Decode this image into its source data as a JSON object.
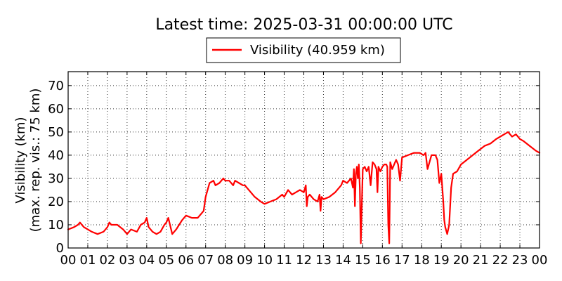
{
  "title": "Latest time: 2025-03-31 00:00:00 UTC",
  "legend": {
    "label": "Visibility (40.959 km)",
    "color": "#ff0000",
    "placement": "top-center"
  },
  "colors": {
    "series": "#ff0000",
    "grid": "#000000",
    "background": "#ffffff"
  },
  "chart_data": {
    "type": "line",
    "title": "Latest time: 2025-03-31 00:00:00 UTC",
    "xlabel": "",
    "ylabel_line1": "Visibility (km)",
    "ylabel_line2": "(max. rep. vis.: 75 km)",
    "xlim": [
      0,
      24
    ],
    "ylim": [
      0,
      76
    ],
    "grid": true,
    "xticks": [
      0,
      1,
      2,
      3,
      4,
      5,
      6,
      7,
      8,
      9,
      10,
      11,
      12,
      13,
      14,
      15,
      16,
      17,
      18,
      19,
      20,
      21,
      22,
      23,
      24
    ],
    "xtick_labels": [
      "00",
      "01",
      "02",
      "03",
      "04",
      "05",
      "06",
      "07",
      "08",
      "09",
      "10",
      "11",
      "12",
      "13",
      "14",
      "15",
      "16",
      "17",
      "18",
      "19",
      "20",
      "21",
      "22",
      "23",
      "00"
    ],
    "yticks": [
      0,
      10,
      20,
      30,
      40,
      50,
      60,
      70
    ],
    "ytick_labels": [
      "0",
      "10",
      "20",
      "30",
      "40",
      "50",
      "60",
      "70"
    ],
    "series": [
      {
        "name": "Visibility (40.959 km)",
        "color": "#ff0000",
        "x": [
          0.0,
          0.3,
          0.5,
          0.6,
          0.8,
          1.0,
          1.2,
          1.5,
          1.8,
          2.0,
          2.1,
          2.2,
          2.5,
          2.8,
          3.0,
          3.2,
          3.5,
          3.7,
          3.9,
          4.0,
          4.1,
          4.3,
          4.5,
          4.7,
          4.9,
          5.0,
          5.1,
          5.3,
          5.5,
          5.8,
          6.0,
          6.3,
          6.6,
          6.9,
          7.0,
          7.2,
          7.4,
          7.5,
          7.7,
          7.9,
          8.0,
          8.2,
          8.4,
          8.5,
          8.7,
          8.9,
          9.0,
          9.2,
          9.5,
          9.8,
          10.0,
          10.3,
          10.6,
          10.9,
          11.0,
          11.2,
          11.4,
          11.6,
          11.8,
          12.0,
          12.1,
          12.15,
          12.2,
          12.3,
          12.5,
          12.7,
          12.8,
          12.85,
          12.9,
          13.0,
          13.3,
          13.6,
          13.9,
          14.0,
          14.2,
          14.4,
          14.5,
          14.55,
          14.6,
          14.65,
          14.7,
          14.75,
          14.8,
          14.85,
          14.9,
          15.0,
          15.1,
          15.2,
          15.3,
          15.4,
          15.5,
          15.6,
          15.7,
          15.75,
          15.8,
          15.9,
          16.0,
          16.1,
          16.2,
          16.25,
          16.3,
          16.35,
          16.4,
          16.5,
          16.6,
          16.7,
          16.8,
          16.9,
          17.0,
          17.3,
          17.6,
          17.9,
          18.1,
          18.2,
          18.3,
          18.5,
          18.7,
          18.8,
          18.9,
          19.0,
          19.1,
          19.15,
          19.2,
          19.3,
          19.4,
          19.5,
          19.6,
          19.8,
          20.0,
          20.3,
          20.6,
          20.9,
          21.2,
          21.5,
          21.8,
          22.0,
          22.2,
          22.4,
          22.6,
          22.8,
          23.0,
          23.2,
          23.5,
          23.8,
          24.0
        ],
        "y": [
          8,
          9,
          10,
          11,
          9,
          8,
          7,
          6,
          7,
          9,
          11,
          10,
          10,
          8,
          6,
          8,
          7,
          10,
          11,
          13,
          9,
          7,
          6,
          7,
          10,
          11,
          13,
          6,
          8,
          12,
          14,
          13,
          13,
          16,
          22,
          28,
          29,
          27,
          28,
          30,
          29,
          29,
          27,
          29,
          28,
          27,
          27,
          25,
          22,
          20,
          19,
          20,
          21,
          23,
          22,
          25,
          23,
          24,
          25,
          24,
          27,
          18,
          22,
          23,
          21,
          20,
          23,
          16,
          22,
          21,
          22,
          24,
          27,
          29,
          28,
          30,
          26,
          34,
          18,
          32,
          35,
          30,
          36,
          26,
          2,
          34,
          35,
          33,
          35,
          27,
          37,
          36,
          34,
          24,
          35,
          33,
          35,
          36,
          36,
          35,
          10,
          2,
          37,
          34,
          36,
          38,
          36,
          29,
          39,
          40,
          41,
          41,
          40,
          41,
          34,
          40,
          40,
          38,
          28,
          32,
          20,
          12,
          9,
          6,
          10,
          26,
          32,
          33,
          36,
          38,
          40,
          42,
          44,
          45,
          47,
          48,
          49,
          50,
          48,
          49,
          47,
          46,
          44,
          42,
          41
        ]
      }
    ]
  }
}
